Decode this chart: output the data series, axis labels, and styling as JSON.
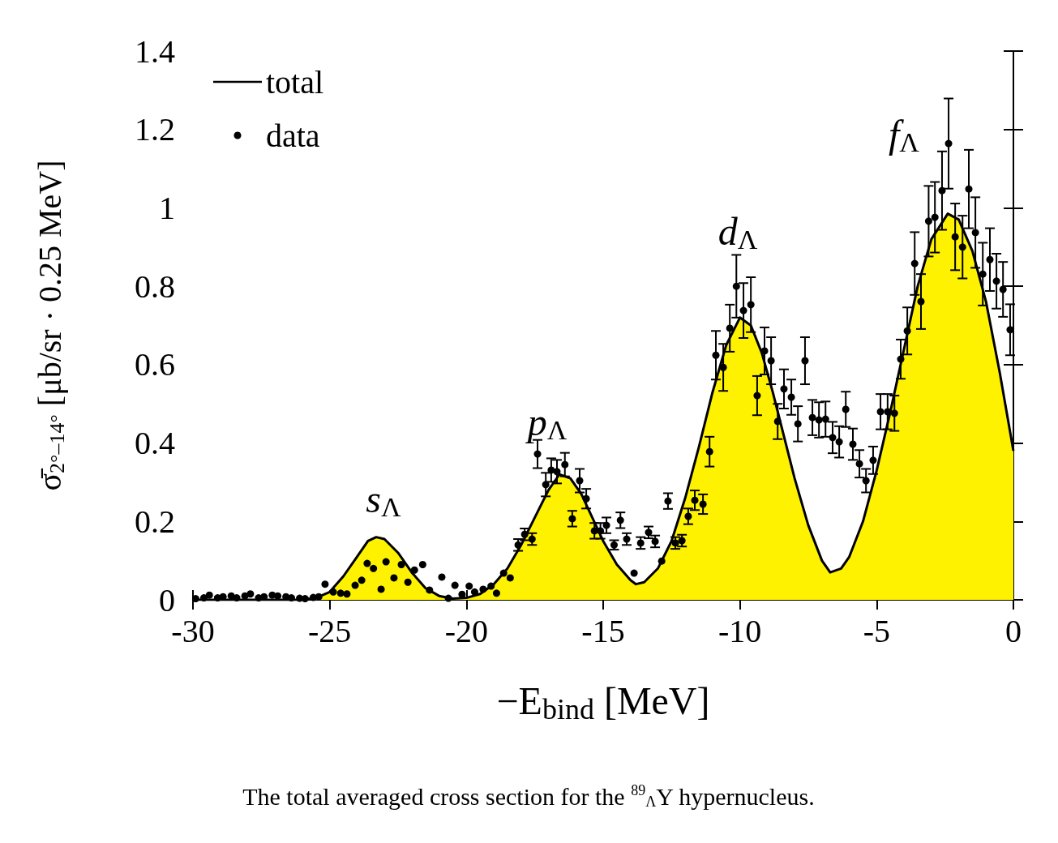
{
  "chart_data": {
    "type": "scatter",
    "xlabel": "−E$_{bind}$ [MeV]",
    "ylabel": "σ̄$_{2°–14°}$ [μb/sr · 0.25 MeV]",
    "xlim": [
      -30,
      0
    ],
    "xticks": [
      -30,
      -25,
      -20,
      -15,
      -10,
      -5,
      0
    ],
    "ylim": [
      0,
      1.4
    ],
    "yticks": [
      0,
      0.2,
      0.4,
      0.6,
      0.8,
      1,
      1.2,
      1.4
    ],
    "grid": false,
    "legend": "top left",
    "annotations": [
      "s$_{Λ}$",
      "p$_{Λ}$",
      "d$_{Λ}$",
      "f$_{Λ}$",
      "The total averaged cross section for the $^{89}$$_{Λ}$Y hypernucleus."
    ],
    "series": [
      {
        "type": "area",
        "name": "total",
        "color": "#000000",
        "x": [
          -30,
          -26,
          -25.5,
          -25,
          -24.5,
          -24,
          -23.6,
          -23.3,
          -23,
          -22.5,
          -22,
          -21.5,
          -21,
          -20.5,
          -20,
          -19.5,
          -19,
          -18.5,
          -18,
          -17.5,
          -17,
          -16.6,
          -16.2,
          -15.8,
          -15.4,
          -15,
          -14.5,
          -14,
          -13.8,
          -13.5,
          -13,
          -12.5,
          -12,
          -11.5,
          -11,
          -10.5,
          -10,
          -9.6,
          -9.2,
          -8.8,
          -8.4,
          -8,
          -7.5,
          -7,
          -6.7,
          -6.3,
          -6,
          -5.5,
          -5,
          -4.5,
          -4,
          -3.5,
          -3,
          -2.4,
          -2,
          -1.5,
          -1,
          -0.5,
          0
        ],
        "values": [
          0,
          0,
          0.005,
          0.02,
          0.06,
          0.11,
          0.15,
          0.16,
          0.155,
          0.12,
          0.07,
          0.03,
          0.01,
          0.003,
          0.005,
          0.015,
          0.04,
          0.08,
          0.14,
          0.21,
          0.28,
          0.32,
          0.31,
          0.27,
          0.21,
          0.15,
          0.09,
          0.05,
          0.04,
          0.045,
          0.08,
          0.15,
          0.26,
          0.39,
          0.53,
          0.65,
          0.72,
          0.7,
          0.63,
          0.53,
          0.42,
          0.31,
          0.19,
          0.1,
          0.07,
          0.08,
          0.11,
          0.2,
          0.33,
          0.48,
          0.64,
          0.8,
          0.92,
          0.985,
          0.97,
          0.89,
          0.76,
          0.58,
          0.38
        ]
      },
      {
        "name": "data",
        "color": "#000000",
        "marker": "circle",
        "x": [
          -29.9,
          -29.6,
          -29.4,
          -29.1,
          -28.9,
          -28.6,
          -28.4,
          -28.1,
          -27.9,
          -27.6,
          -27.4,
          -27.1,
          -26.9,
          -26.6,
          -26.4,
          -26.1,
          -25.9,
          -25.6,
          -25.4,
          -25.17,
          -24.87,
          -24.6,
          -24.37,
          -24.07,
          -23.83,
          -23.63,
          -23.4,
          -23.12,
          -22.94,
          -22.65,
          -22.38,
          -22.14,
          -21.9,
          -21.6,
          -21.35,
          -20.9,
          -20.66,
          -20.42,
          -20.16,
          -19.9,
          -19.7,
          -19.39,
          -19.1,
          -18.9,
          -18.64,
          -18.4,
          -18.11,
          -17.87,
          -17.6,
          -17.4,
          -17.1,
          -16.9,
          -16.69,
          -16.4,
          -16.13,
          -15.86,
          -15.62,
          -15.32,
          -15.1,
          -14.88,
          -14.6,
          -14.37,
          -14.14,
          -13.87,
          -13.63,
          -13.34,
          -13.1,
          -12.86,
          -12.63,
          -12.36,
          -12.12,
          -11.89,
          -11.65,
          -11.35,
          -11.11,
          -10.88,
          -10.61,
          -10.37,
          -10.13,
          -9.87,
          -9.6,
          -9.37,
          -9.1,
          -8.86,
          -8.62,
          -8.39,
          -8.12,
          -7.88,
          -7.62,
          -7.35,
          -7.11,
          -6.87,
          -6.61,
          -6.37,
          -6.13,
          -5.87,
          -5.63,
          -5.39,
          -5.13,
          -4.86,
          -4.6,
          -4.35,
          -4.12,
          -3.88,
          -3.61,
          -3.38,
          -3.1,
          -2.87,
          -2.61,
          -2.37,
          -2.13,
          -1.86,
          -1.63,
          -1.39,
          -1.12,
          -0.86,
          -0.62,
          -0.38,
          -0.12
        ],
        "values": [
          0.003,
          0.005,
          0.012,
          0.005,
          0.008,
          0.01,
          0.005,
          0.01,
          0.015,
          0.005,
          0.008,
          0.012,
          0.01,
          0.008,
          0.005,
          0.004,
          0.003,
          0.006,
          0.008,
          0.04,
          0.02,
          0.017,
          0.015,
          0.037,
          0.05,
          0.093,
          0.08,
          0.027,
          0.097,
          0.056,
          0.09,
          0.045,
          0.076,
          0.09,
          0.025,
          0.058,
          0.004,
          0.037,
          0.014,
          0.035,
          0.02,
          0.027,
          0.035,
          0.017,
          0.068,
          0.056,
          0.14,
          0.167,
          0.155,
          0.372,
          0.294,
          0.331,
          0.327,
          0.345,
          0.207,
          0.304,
          0.258,
          0.176,
          0.176,
          0.19,
          0.14,
          0.203,
          0.155,
          0.068,
          0.145,
          0.172,
          0.149,
          0.099,
          0.252,
          0.145,
          0.151,
          0.213,
          0.254,
          0.244,
          0.378,
          0.624,
          0.593,
          0.693,
          0.8,
          0.738,
          0.753,
          0.521,
          0.635,
          0.61,
          0.455,
          0.538,
          0.517,
          0.449,
          0.61,
          0.465,
          0.459,
          0.461,
          0.414,
          0.403,
          0.486,
          0.397,
          0.347,
          0.304,
          0.356,
          0.48,
          0.48,
          0.476,
          0.614,
          0.686,
          0.858,
          0.761,
          0.966,
          0.976,
          1.044,
          1.164,
          0.926,
          0.9,
          1.048,
          0.937,
          0.831,
          0.868,
          0.813,
          0.792,
          0.689
        ],
        "errors": [
          null,
          null,
          null,
          null,
          null,
          null,
          null,
          null,
          null,
          null,
          null,
          null,
          null,
          null,
          null,
          null,
          null,
          null,
          null,
          null,
          null,
          null,
          null,
          null,
          null,
          null,
          null,
          null,
          null,
          null,
          null,
          null,
          null,
          null,
          null,
          null,
          null,
          null,
          null,
          null,
          null,
          null,
          null,
          null,
          null,
          null,
          0.015,
          0.015,
          0.015,
          0.036,
          0.03,
          0.03,
          0.03,
          0.03,
          0.02,
          0.03,
          0.025,
          0.02,
          0.02,
          0.02,
          0.012,
          0.02,
          0.015,
          null,
          0.015,
          0.015,
          0.015,
          null,
          0.02,
          0.015,
          0.015,
          0.02,
          0.025,
          0.025,
          0.038,
          0.062,
          0.06,
          0.06,
          0.08,
          0.07,
          0.07,
          0.05,
          0.06,
          0.06,
          0.045,
          0.05,
          0.045,
          0.045,
          0.06,
          0.045,
          0.045,
          0.045,
          0.04,
          0.04,
          0.045,
          0.04,
          0.035,
          0.03,
          0.035,
          0.045,
          0.045,
          0.045,
          0.05,
          0.06,
          0.08,
          0.07,
          0.09,
          0.09,
          0.1,
          0.115,
          0.085,
          0.08,
          0.1,
          0.09,
          0.08,
          0.08,
          0.07,
          0.07,
          0.065
        ]
      }
    ]
  }
}
